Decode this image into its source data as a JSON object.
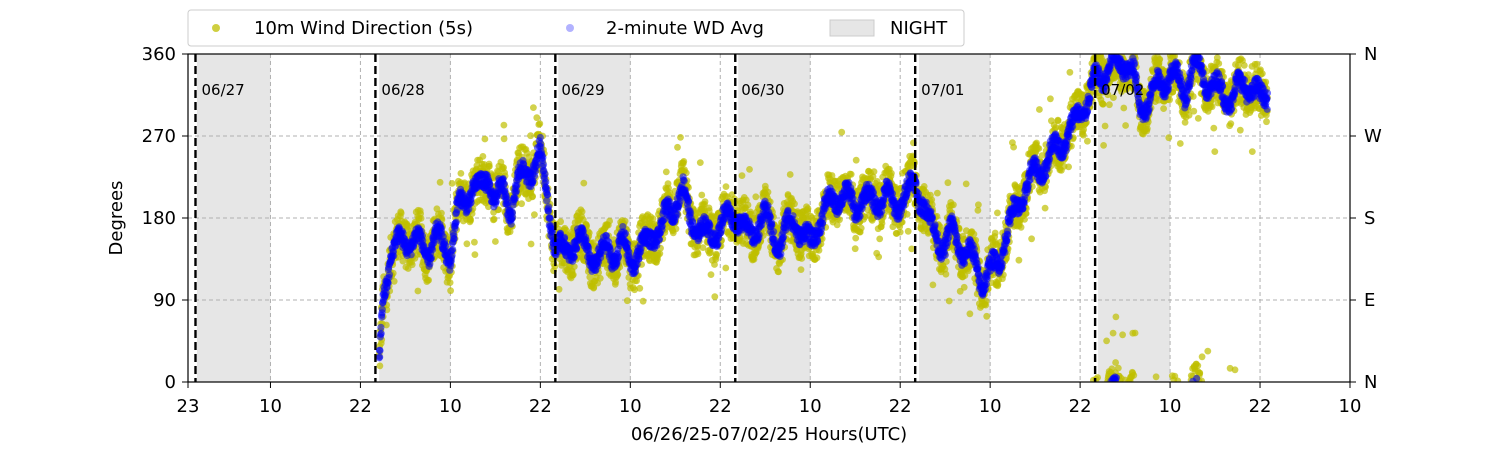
{
  "chart_data": {
    "type": "scatter",
    "xlabel": "06/26/25-07/02/25  Hours(UTC)",
    "ylabel": "Degrees",
    "ylim": [
      0,
      360
    ],
    "xlim_hours": [
      0,
      155
    ],
    "yticks": [
      0,
      90,
      180,
      270,
      360
    ],
    "right_tick_labels": [
      "N",
      "E",
      "S",
      "W",
      "N"
    ],
    "x_ticks": [
      {
        "hour": 0,
        "label": "23"
      },
      {
        "hour": 11,
        "label": "10"
      },
      {
        "hour": 23,
        "label": "22"
      },
      {
        "hour": 35,
        "label": "10"
      },
      {
        "hour": 47,
        "label": "22"
      },
      {
        "hour": 59,
        "label": "10"
      },
      {
        "hour": 71,
        "label": "22"
      },
      {
        "hour": 83,
        "label": "10"
      },
      {
        "hour": 95,
        "label": "22"
      },
      {
        "hour": 107,
        "label": "10"
      },
      {
        "hour": 119,
        "label": "22"
      },
      {
        "hour": 131,
        "label": "10"
      },
      {
        "hour": 143,
        "label": "22"
      },
      {
        "hour": 155,
        "label": "10"
      }
    ],
    "grid": true,
    "legend": {
      "placement": "top",
      "entries": [
        {
          "label": "10m Wind Direction (5s)",
          "color": "#bfbf00"
        },
        {
          "label": "2-minute WD Avg",
          "color": "#0000ff"
        },
        {
          "label": "NIGHT",
          "color": "#e6e6e6"
        }
      ]
    },
    "night_shading": [
      [
        1.2,
        11
      ],
      [
        25.5,
        35
      ],
      [
        49.4,
        59
      ],
      [
        73.4,
        83
      ],
      [
        97.5,
        107
      ],
      [
        121.4,
        131
      ]
    ],
    "midnight_markers": [
      {
        "hour": 1,
        "label": "06/27"
      },
      {
        "hour": 25,
        "label": "06/28"
      },
      {
        "hour": 49,
        "label": "06/29"
      },
      {
        "hour": 73,
        "label": "06/30"
      },
      {
        "hour": 97,
        "label": "07/01"
      },
      {
        "hour": 121,
        "label": "07/02"
      }
    ],
    "data_range_hours": [
      25,
      144
    ],
    "series": [
      {
        "name": "10m Wind Direction (5s)",
        "color": "#bfbf00",
        "x": [
          25.5,
          26,
          27,
          28,
          29,
          30,
          31,
          32,
          33,
          34,
          35,
          36,
          37,
          38,
          39,
          40,
          41,
          42,
          43,
          44,
          45,
          46,
          47,
          48,
          49,
          50,
          51,
          52,
          53,
          54,
          55,
          56,
          57,
          58,
          59,
          60,
          61,
          62,
          63,
          64,
          65,
          66,
          67,
          68,
          69,
          70,
          71,
          72,
          73,
          74,
          75,
          76,
          77,
          78,
          79,
          80,
          81,
          82,
          83,
          84,
          85,
          86,
          87,
          88,
          89,
          90,
          91,
          92,
          93,
          94,
          95,
          96,
          97,
          98,
          99,
          100,
          101,
          102,
          103,
          104,
          105,
          106,
          107,
          108,
          109,
          110,
          111,
          112,
          113,
          114,
          115,
          116,
          117,
          118,
          119,
          120,
          121,
          122,
          123,
          124,
          125,
          126,
          127,
          128,
          129,
          130,
          131,
          132,
          133,
          134,
          135,
          136,
          137,
          138,
          139,
          140,
          141,
          142,
          143,
          144
        ],
        "y": [
          10,
          90,
          140,
          150,
          160,
          155,
          150,
          145,
          160,
          150,
          140,
          190,
          200,
          220,
          210,
          230,
          200,
          210,
          190,
          220,
          230,
          240,
          250,
          200,
          150,
          140,
          150,
          160,
          145,
          140,
          130,
          150,
          140,
          150,
          135,
          140,
          150,
          170,
          160,
          190,
          200,
          210,
          180,
          170,
          160,
          165,
          170,
          180,
          190,
          170,
          160,
          175,
          180,
          165,
          150,
          170,
          180,
          160,
          150,
          175,
          190,
          200,
          210,
          200,
          190,
          205,
          195,
          200,
          210,
          190,
          200,
          210,
          220,
          200,
          170,
          160,
          150,
          165,
          150,
          140,
          130,
          110,
          120,
          130,
          160,
          180,
          200,
          220,
          230,
          240,
          250,
          260,
          270,
          280,
          300,
          310,
          330,
          340,
          350,
          345,
          355,
          340,
          300,
          310,
          320,
          330,
          340,
          330,
          320,
          350,
          340,
          330,
          320,
          320,
          310,
          320,
          330,
          320,
          310,
          320
        ]
      },
      {
        "name": "2-minute WD Avg",
        "color": "#0000ff",
        "x": [
          25.5,
          26,
          27,
          28,
          29,
          30,
          31,
          32,
          33,
          34,
          35,
          36,
          37,
          38,
          39,
          40,
          41,
          42,
          43,
          44,
          45,
          46,
          47,
          48,
          49,
          50,
          51,
          52,
          53,
          54,
          55,
          56,
          57,
          58,
          59,
          60,
          61,
          62,
          63,
          64,
          65,
          66,
          67,
          68,
          69,
          70,
          71,
          72,
          73,
          74,
          75,
          76,
          77,
          78,
          79,
          80,
          81,
          82,
          83,
          84,
          85,
          86,
          87,
          88,
          89,
          90,
          91,
          92,
          93,
          94,
          95,
          96,
          97,
          98,
          99,
          100,
          101,
          102,
          103,
          104,
          105,
          106,
          107,
          108,
          109,
          110,
          111,
          112,
          113,
          114,
          115,
          116,
          117,
          118,
          119,
          120,
          121,
          122,
          123,
          124,
          125,
          126,
          127,
          128,
          129,
          130,
          131,
          132,
          133,
          134,
          135,
          136,
          137,
          138,
          139,
          140,
          141,
          142,
          143,
          144
        ],
        "y": [
          10,
          95,
          140,
          150,
          158,
          155,
          150,
          145,
          158,
          150,
          142,
          188,
          198,
          218,
          208,
          228,
          200,
          208,
          190,
          218,
          228,
          238,
          248,
          200,
          150,
          140,
          150,
          158,
          145,
          140,
          132,
          150,
          140,
          150,
          136,
          140,
          150,
          168,
          160,
          188,
          198,
          208,
          180,
          170,
          160,
          165,
          170,
          180,
          188,
          170,
          160,
          175,
          180,
          165,
          150,
          170,
          180,
          160,
          150,
          175,
          188,
          198,
          208,
          200,
          190,
          205,
          195,
          200,
          208,
          190,
          200,
          208,
          218,
          200,
          170,
          160,
          150,
          165,
          150,
          140,
          130,
          112,
          120,
          130,
          160,
          180,
          200,
          218,
          228,
          238,
          248,
          258,
          268,
          278,
          298,
          310,
          328,
          338,
          348,
          345,
          354,
          340,
          300,
          310,
          320,
          330,
          340,
          330,
          320,
          348,
          340,
          330,
          320,
          320,
          310,
          320,
          330,
          320,
          310,
          320
        ]
      }
    ]
  }
}
